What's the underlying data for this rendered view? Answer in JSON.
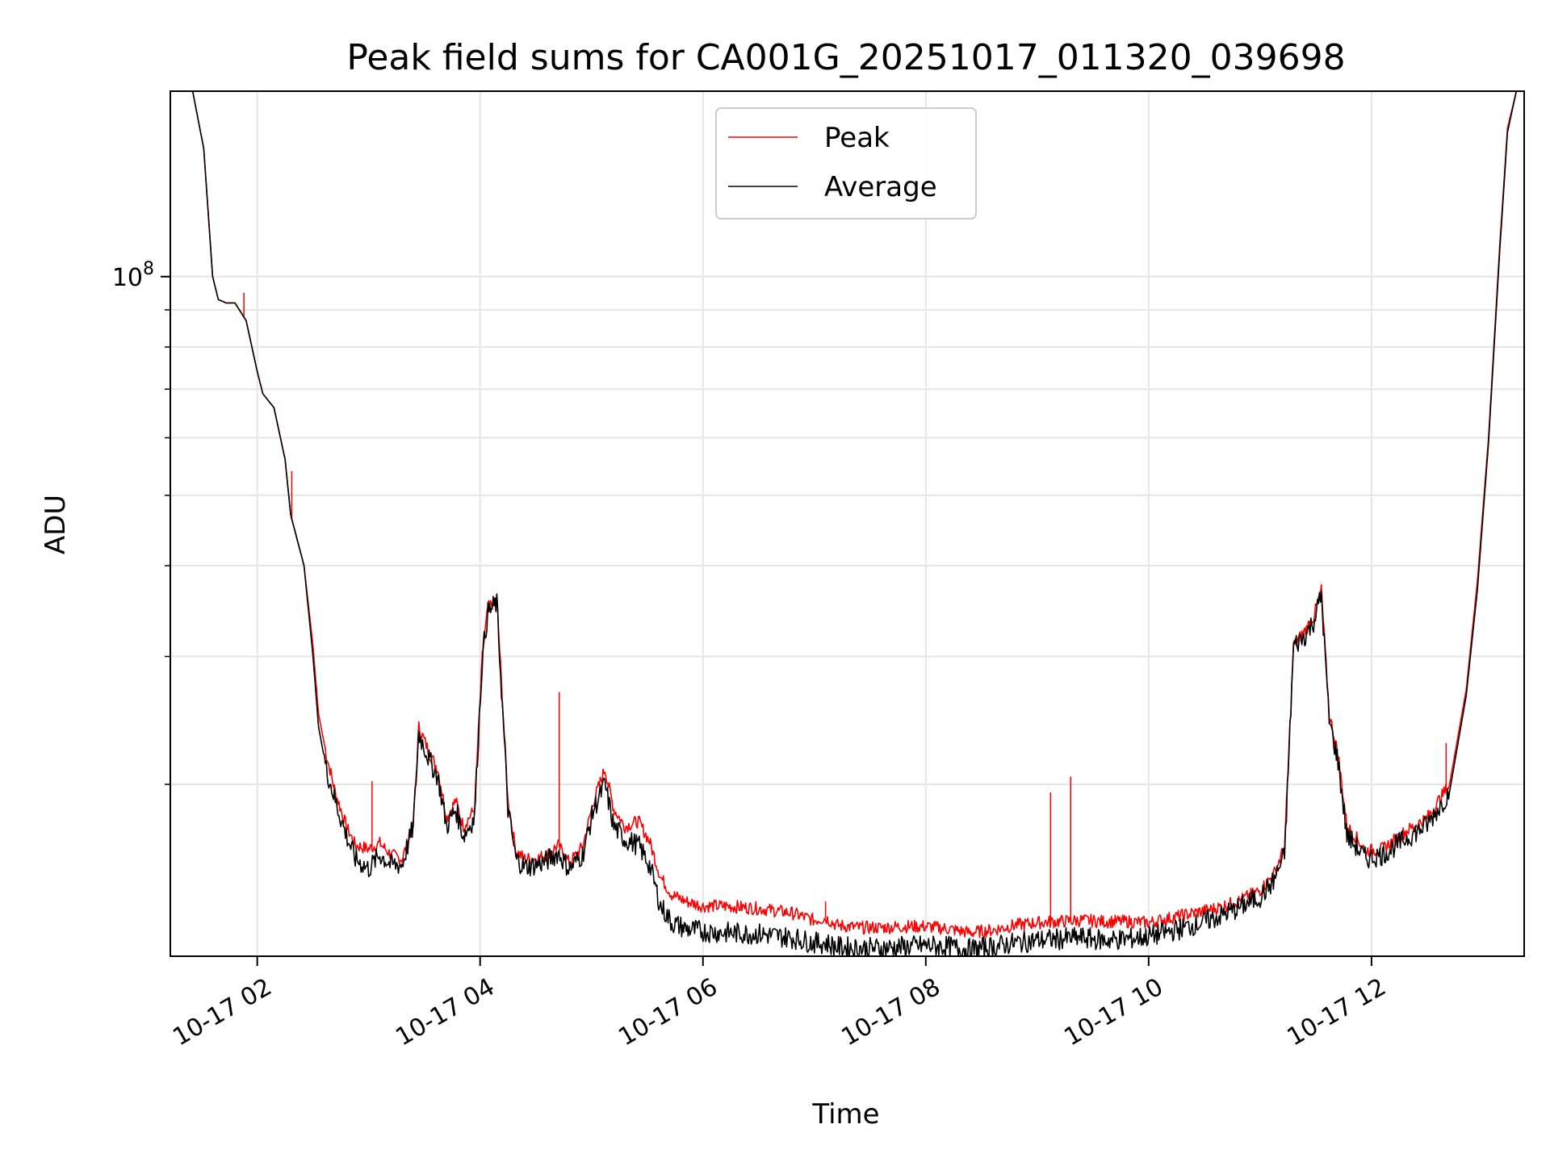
{
  "chart_data": {
    "type": "line",
    "title": "Peak field sums for CA001G_20251017_011320_039698",
    "xlabel": "Time",
    "ylabel": "ADU",
    "yscale": "log",
    "ylim": [
      11600000,
      180000000
    ],
    "xlim_hours": [
      1.22,
      13.37
    ],
    "grid": true,
    "legend_position": "top-center",
    "x_ticks": [
      {
        "value": 2,
        "label": "10-17 02"
      },
      {
        "value": 4,
        "label": "10-17 04"
      },
      {
        "value": 6,
        "label": "10-17 06"
      },
      {
        "value": 8,
        "label": "10-17 08"
      },
      {
        "value": 10,
        "label": "10-17 10"
      },
      {
        "value": 12,
        "label": "10-17 12"
      }
    ],
    "y_ticks": [
      {
        "value": 100000000,
        "label_base": "10",
        "label_exp": "8"
      }
    ],
    "y_minor_ticks": [
      20000000,
      30000000,
      40000000,
      50000000,
      60000000,
      70000000,
      80000000,
      90000000
    ],
    "series": [
      {
        "name": "Peak",
        "color": "#ff0000",
        "x": [
          1.22,
          1.42,
          1.52,
          1.6,
          1.65,
          1.72,
          1.8,
          1.9,
          2.0,
          2.05,
          2.15,
          2.25,
          2.3,
          2.42,
          2.5,
          2.55,
          2.62,
          2.7,
          2.8,
          2.88,
          3.0,
          3.1,
          3.2,
          3.3,
          3.4,
          3.45,
          3.5,
          3.55,
          3.62,
          3.7,
          3.78,
          3.85,
          3.95,
          4.02,
          4.07,
          4.15,
          4.25,
          4.32,
          4.4,
          4.5,
          4.6,
          4.7,
          4.8,
          4.92,
          5.02,
          5.12,
          5.2,
          5.3,
          5.42,
          5.52,
          5.62,
          5.72,
          5.85,
          6.0,
          6.2,
          6.5,
          6.8,
          7.0,
          7.1,
          7.2,
          7.4,
          7.6,
          7.8,
          8.0,
          8.2,
          8.4,
          8.6,
          8.8,
          9.0,
          9.2,
          9.4,
          9.6,
          9.8,
          10.0,
          10.2,
          10.4,
          10.6,
          10.8,
          11.0,
          11.12,
          11.22,
          11.3,
          11.4,
          11.48,
          11.55,
          11.62,
          11.7,
          11.78,
          11.85,
          11.95,
          12.1,
          12.3,
          12.5,
          12.7,
          12.85,
          12.95,
          13.05,
          13.15,
          13.22,
          13.3,
          13.37
        ],
        "y": [
          180000000,
          180000000,
          150000000,
          100000000,
          93000000,
          92000000,
          92000000,
          87000000,
          74000000,
          69000000,
          66000000,
          56000000,
          47000000,
          40000000,
          31000000,
          25000000,
          22000000,
          19500000,
          17500000,
          16500000,
          16300000,
          16600000,
          16000000,
          15800000,
          17500000,
          24000000,
          23000000,
          22000000,
          21000000,
          18000000,
          19000000,
          17500000,
          18500000,
          30000000,
          35000000,
          36000000,
          19000000,
          16200000,
          15800000,
          15800000,
          16000000,
          16500000,
          15600000,
          16400000,
          19000000,
          21000000,
          18500000,
          17500000,
          17800000,
          16700000,
          14900000,
          14100000,
          13800000,
          13600000,
          13600000,
          13500000,
          13300000,
          13000000,
          13100000,
          12800000,
          12700000,
          12700000,
          12750000,
          12750000,
          12650000,
          12500000,
          12600000,
          12800000,
          12900000,
          12950000,
          13000000,
          12950000,
          12950000,
          12900000,
          13100000,
          13300000,
          13500000,
          13800000,
          14300000,
          15000000,
          16400000,
          31000000,
          32500000,
          34000000,
          37000000,
          25000000,
          22000000,
          17500000,
          17000000,
          16200000,
          16300000,
          17200000,
          18000000,
          20000000,
          27000000,
          38000000,
          60000000,
          110000000,
          160000000,
          180000000,
          180000000
        ]
      },
      {
        "name": "Average",
        "color": "#000000",
        "x": [
          1.22,
          1.42,
          1.52,
          1.6,
          1.65,
          1.72,
          1.8,
          1.9,
          2.0,
          2.05,
          2.15,
          2.25,
          2.3,
          2.42,
          2.5,
          2.55,
          2.62,
          2.7,
          2.8,
          2.88,
          3.0,
          3.1,
          3.2,
          3.3,
          3.4,
          3.45,
          3.5,
          3.55,
          3.62,
          3.7,
          3.78,
          3.85,
          3.95,
          4.02,
          4.07,
          4.15,
          4.25,
          4.32,
          4.4,
          4.5,
          4.6,
          4.7,
          4.8,
          4.92,
          5.02,
          5.12,
          5.2,
          5.3,
          5.42,
          5.52,
          5.62,
          5.72,
          5.85,
          6.0,
          6.2,
          6.5,
          6.8,
          7.0,
          7.1,
          7.2,
          7.4,
          7.6,
          7.8,
          8.0,
          8.2,
          8.4,
          8.6,
          8.8,
          9.0,
          9.2,
          9.4,
          9.6,
          9.8,
          10.0,
          10.2,
          10.4,
          10.6,
          10.8,
          11.0,
          11.12,
          11.22,
          11.3,
          11.4,
          11.48,
          11.55,
          11.62,
          11.7,
          11.78,
          11.85,
          11.95,
          12.1,
          12.3,
          12.5,
          12.7,
          12.85,
          12.95,
          13.05,
          13.15,
          13.22,
          13.3,
          13.37
        ],
        "y": [
          180000000,
          180000000,
          150000000,
          100000000,
          93000000,
          92000000,
          92000000,
          87000000,
          74000000,
          69000000,
          66000000,
          56000000,
          47000000,
          40000000,
          30000000,
          24000000,
          21000000,
          19000000,
          17000000,
          15800000,
          15300000,
          16000000,
          15500000,
          15500000,
          17500000,
          23500000,
          22500000,
          21500000,
          20500000,
          17500000,
          18500000,
          17000000,
          18000000,
          30000000,
          34500000,
          35500000,
          18500000,
          15800000,
          15400000,
          15500000,
          15700000,
          16100000,
          15300000,
          16000000,
          18500000,
          20000000,
          17500000,
          16800000,
          16500000,
          15500000,
          13600000,
          12900000,
          12650000,
          12550000,
          12500000,
          12450000,
          12300000,
          12100000,
          12100000,
          11950000,
          11900000,
          11900000,
          11950000,
          12000000,
          11950000,
          11850000,
          11950000,
          12100000,
          12200000,
          12250000,
          12300000,
          12200000,
          12250000,
          12350000,
          12550000,
          12800000,
          13100000,
          13500000,
          14000000,
          14700000,
          16000000,
          31000000,
          32000000,
          33500000,
          36500000,
          24500000,
          21500000,
          17000000,
          16500000,
          15800000,
          16000000,
          16800000,
          17600000,
          19500000,
          26500000,
          37000000,
          59000000,
          108000000,
          158000000,
          180000000,
          180000000
        ]
      }
    ],
    "spikes": [
      {
        "series": "Peak",
        "x": 1.88,
        "y": 95000000
      },
      {
        "series": "Peak",
        "x": 2.31,
        "y": 54000000
      },
      {
        "series": "Peak",
        "x": 3.03,
        "y": 20200000
      },
      {
        "series": "Peak",
        "x": 4.71,
        "y": 26800000
      },
      {
        "series": "Peak",
        "x": 7.1,
        "y": 13800000
      },
      {
        "series": "Peak",
        "x": 9.12,
        "y": 19500000
      },
      {
        "series": "Peak",
        "x": 9.3,
        "y": 20500000
      },
      {
        "series": "Peak",
        "x": 12.67,
        "y": 22800000
      }
    ]
  }
}
